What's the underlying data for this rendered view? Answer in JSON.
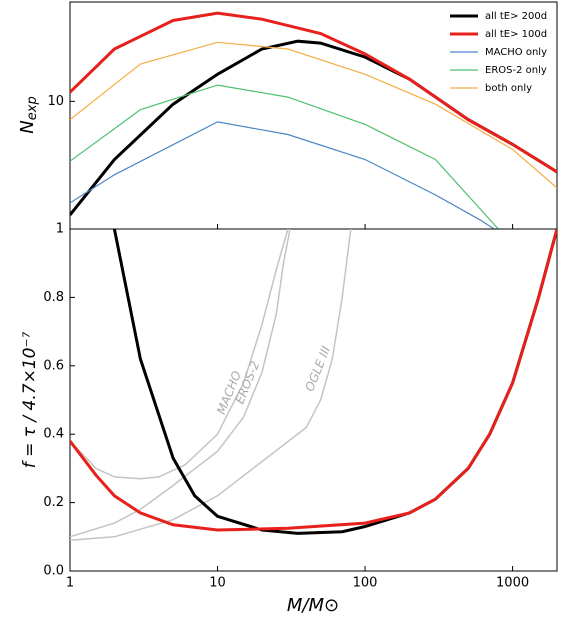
{
  "chart_data": [
    {
      "type": "line",
      "log_x": true,
      "log_y": true,
      "ylabel": {
        "main": "N",
        "sub": "exp"
      },
      "xlim": [
        1,
        2000
      ],
      "ylim": [
        1,
        60
      ],
      "yticks": [
        10
      ],
      "legend": "upper right",
      "series": [
        {
          "name": "all tE> 200d",
          "color": "#000000",
          "width": 3,
          "x": [
            1,
            2,
            5,
            10,
            20,
            35,
            50,
            100,
            200,
            500,
            1000,
            2000
          ],
          "values": [
            1.29,
            3.5,
            9.5,
            16.3,
            25.7,
            29.6,
            28.6,
            22.2,
            14.9,
            7.2,
            4.6,
            2.8
          ]
        },
        {
          "name": "all tE> 100d",
          "color": "#e8201c",
          "width": 3,
          "x": [
            1,
            2,
            5,
            10,
            20,
            50,
            100,
            200,
            500,
            1000,
            2000
          ],
          "values": [
            11.8,
            25.7,
            43,
            49,
            44,
            34,
            23.5,
            14.9,
            7.2,
            4.6,
            2.8
          ]
        },
        {
          "name": "MACHO only",
          "color": "#4a86c5",
          "width": 1.2,
          "x": [
            1,
            2,
            10,
            30,
            100,
            300,
            600,
            750
          ],
          "values": [
            1.6,
            2.66,
            6.9,
            5.5,
            3.5,
            1.85,
            1.18,
            1
          ]
        },
        {
          "name": "EROS-2 only",
          "color": "#4cc070",
          "width": 1.2,
          "x": [
            1,
            3,
            10,
            30,
            100,
            300,
            800
          ],
          "values": [
            3.4,
            8.6,
            13.4,
            10.8,
            6.6,
            3.5,
            1
          ]
        },
        {
          "name": "both only",
          "color": "#f5ad45",
          "width": 1.2,
          "x": [
            1,
            3,
            10,
            30,
            100,
            300,
            1000,
            2000
          ],
          "values": [
            7.2,
            19.6,
            29,
            25.7,
            16.3,
            9.5,
            4.2,
            2.1
          ]
        }
      ]
    },
    {
      "type": "line",
      "log_x": true,
      "log_y": false,
      "xlabel": "M/M⊙",
      "ylabel": "f = τ / 4.7×10⁻⁷",
      "xlim": [
        1,
        2000
      ],
      "ylim": [
        0,
        1
      ],
      "xticks": [
        1,
        10,
        100,
        1000
      ],
      "yticks": [
        {
          "value": 0,
          "label": "0.0"
        },
        0.2,
        0.4,
        0.6,
        0.8,
        1
      ],
      "series": [
        {
          "name": "MACHO",
          "color": "#c4c4c4",
          "width": 1.5,
          "x": [
            1,
            1.5,
            2,
            3,
            4,
            6,
            10,
            15,
            20,
            25,
            30
          ],
          "values": [
            0.38,
            0.3,
            0.275,
            0.27,
            0.275,
            0.31,
            0.4,
            0.55,
            0.72,
            0.88,
            1.0
          ]
        },
        {
          "name": "EROS-2",
          "color": "#c4c4c4",
          "width": 1.5,
          "x": [
            1,
            2,
            3,
            5,
            10,
            15,
            20,
            25,
            28,
            31
          ],
          "values": [
            0.1,
            0.14,
            0.18,
            0.25,
            0.35,
            0.45,
            0.58,
            0.75,
            0.9,
            1.0
          ]
        },
        {
          "name": "OGLE III",
          "color": "#c4c4c4",
          "width": 1.5,
          "x": [
            1,
            2,
            5,
            10,
            20,
            40,
            50,
            60,
            70,
            80
          ],
          "values": [
            0.09,
            0.1,
            0.15,
            0.22,
            0.32,
            0.42,
            0.5,
            0.62,
            0.8,
            1.0
          ]
        },
        {
          "color": "#000000",
          "width": 3,
          "x": [
            2,
            3,
            5,
            7,
            10,
            20,
            35,
            70,
            100,
            200,
            300,
            500,
            700,
            1000,
            1500,
            2000
          ],
          "values": [
            1.0,
            0.62,
            0.33,
            0.22,
            0.16,
            0.12,
            0.11,
            0.115,
            0.13,
            0.17,
            0.21,
            0.3,
            0.4,
            0.55,
            0.8,
            1.0
          ]
        },
        {
          "color": "#e8201c",
          "width": 3,
          "x": [
            1,
            1.5,
            2,
            3,
            5,
            10,
            30,
            100,
            200,
            300,
            500,
            700,
            1000,
            1500,
            2000
          ],
          "values": [
            0.38,
            0.28,
            0.22,
            0.17,
            0.135,
            0.12,
            0.125,
            0.14,
            0.17,
            0.21,
            0.3,
            0.4,
            0.55,
            0.8,
            1.0
          ]
        }
      ]
    }
  ]
}
